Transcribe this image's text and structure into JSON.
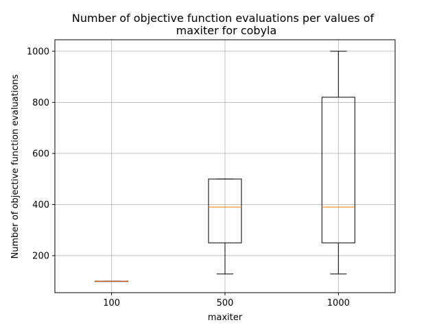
{
  "chart_data": {
    "type": "box",
    "title_lines": [
      "Number of objective function evaluations per values of",
      "maxiter for cobyla"
    ],
    "xlabel": "maxiter",
    "ylabel": "Number of objective function evaluations",
    "categories": [
      "100",
      "500",
      "1000"
    ],
    "boxes": [
      {
        "category": "100",
        "whisker_low": 100,
        "q1": 100,
        "median": 100,
        "q3": 100,
        "whisker_high": 100
      },
      {
        "category": "500",
        "whisker_low": 128,
        "q1": 250,
        "median": 390,
        "q3": 500,
        "whisker_high": 500
      },
      {
        "category": "1000",
        "whisker_low": 128,
        "q1": 250,
        "median": 390,
        "q3": 820,
        "whisker_high": 1000
      }
    ],
    "y_ticks": [
      200,
      400,
      600,
      800,
      1000
    ],
    "ylim": [
      55,
      1045
    ],
    "grid": true,
    "colors": {
      "box": "#000000",
      "median": "#ff7f0e",
      "grid": "#b0b0b0"
    }
  }
}
